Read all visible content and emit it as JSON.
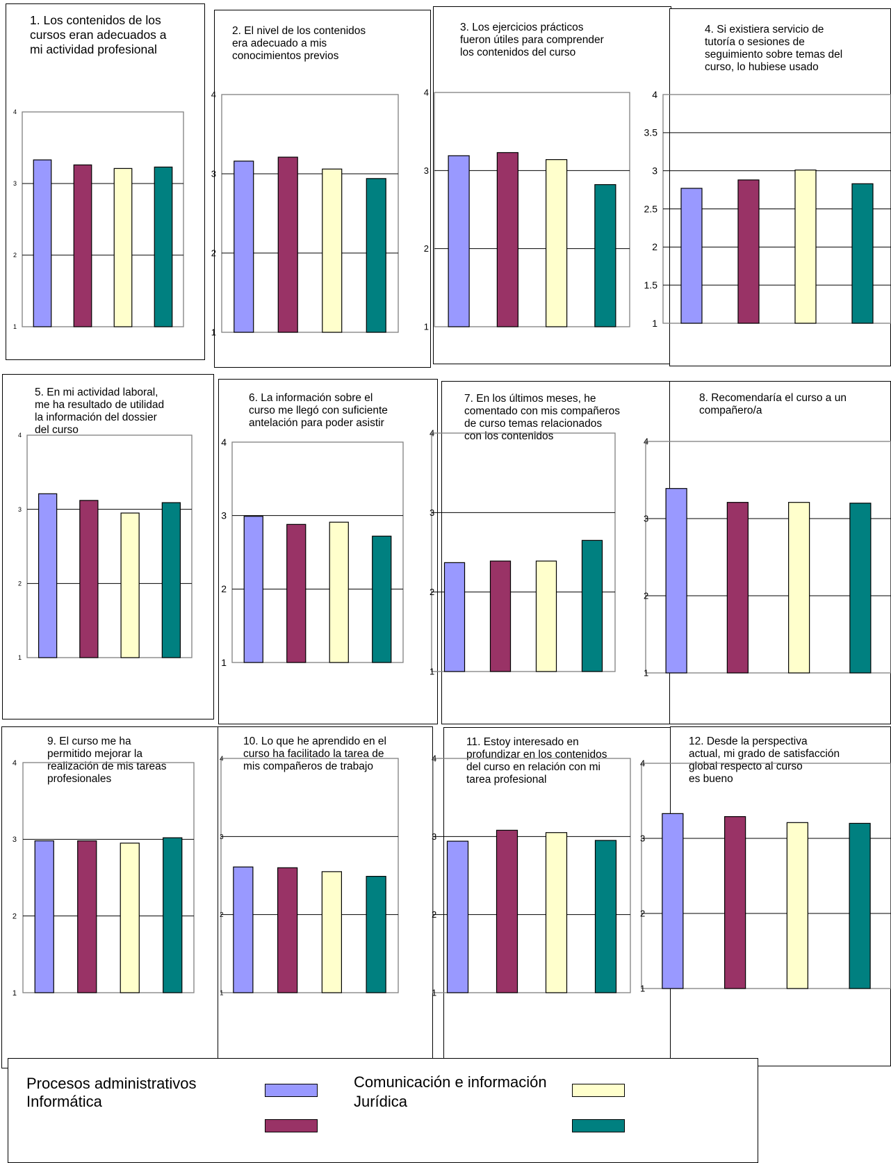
{
  "colors": {
    "procesos": "#9999ff",
    "informatica": "#993366",
    "comunicacion": "#ffffcc",
    "juridica": "#008080"
  },
  "legend": {
    "items": [
      {
        "label": "Procesos administrativos",
        "color": "#9999ff"
      },
      {
        "label": "Informática",
        "color": "#993366"
      },
      {
        "label": "Comunicación e información",
        "color": "#ffffcc"
      },
      {
        "label": "Jurídica",
        "color": "#008080"
      }
    ]
  },
  "chart_data": [
    {
      "type": "bar",
      "title": "1. Los contenidos de los\ncursos eran adecuados a\nmi actividad profesional",
      "ylim": [
        1,
        4
      ],
      "yticks": [
        "1",
        "2",
        "3",
        "4"
      ],
      "grid": true,
      "series": [
        {
          "name": "Procesos administrativos",
          "values": [
            3.33
          ]
        },
        {
          "name": "Informática",
          "values": [
            3.26
          ]
        },
        {
          "name": "Comunicación e información",
          "values": [
            3.21
          ]
        },
        {
          "name": "Jurídica",
          "values": [
            3.23
          ]
        }
      ]
    },
    {
      "type": "bar",
      "title": "2. El nivel de los  contenidos\nera adecuado a mis\nconocimientos previos",
      "ylim": [
        1,
        4
      ],
      "yticks": [
        "1",
        "2",
        "3",
        "4"
      ],
      "grid": true,
      "series": [
        {
          "name": "Procesos administrativos",
          "values": [
            3.16
          ]
        },
        {
          "name": "Informática",
          "values": [
            3.21
          ]
        },
        {
          "name": "Comunicación e información",
          "values": [
            3.06
          ]
        },
        {
          "name": "Jurídica",
          "values": [
            2.94
          ]
        }
      ]
    },
    {
      "type": "bar",
      "title": "3. Los ejercicios prácticos\nfueron útiles para comprender\nlos contenidos del curso",
      "ylim": [
        1,
        4
      ],
      "yticks": [
        "1",
        "2",
        "3",
        "4"
      ],
      "grid": true,
      "series": [
        {
          "name": "Procesos administrativos",
          "values": [
            3.19
          ]
        },
        {
          "name": "Informática",
          "values": [
            3.23
          ]
        },
        {
          "name": "Comunicación e información",
          "values": [
            3.14
          ]
        },
        {
          "name": "Jurídica",
          "values": [
            2.82
          ]
        }
      ]
    },
    {
      "type": "bar",
      "title": "4. Si existiera servicio de\ntutoría o sesiones de\nseguimiento sobre temas del\ncurso, lo hubiese usado",
      "ylim": [
        1,
        4
      ],
      "yticks": [
        "1",
        "1.5",
        "2",
        "2.5",
        "3",
        "3.5",
        "4"
      ],
      "grid": true,
      "series": [
        {
          "name": "Procesos administrativos",
          "values": [
            2.77
          ]
        },
        {
          "name": "Informática",
          "values": [
            2.88
          ]
        },
        {
          "name": "Comunicación e información",
          "values": [
            3.01
          ]
        },
        {
          "name": "Jurídica",
          "values": [
            2.83
          ]
        }
      ]
    },
    {
      "type": "bar",
      "title": "5. En mi actividad laboral,\nme ha resultado de utilidad\nla información del dossier\ndel curso",
      "ylim": [
        1,
        4
      ],
      "yticks": [
        "1",
        "2",
        "3",
        "4"
      ],
      "grid": true,
      "series": [
        {
          "name": "Procesos administrativos",
          "values": [
            3.21
          ]
        },
        {
          "name": "Informática",
          "values": [
            3.12
          ]
        },
        {
          "name": "Comunicación e información",
          "values": [
            2.95
          ]
        },
        {
          "name": "Jurídica",
          "values": [
            3.09
          ]
        }
      ]
    },
    {
      "type": "bar",
      "title": "6. La información sobre el\ncurso me llegó con suficiente\nantelación para poder asistir",
      "ylim": [
        1,
        4
      ],
      "yticks": [
        "1",
        "2",
        "3",
        "4"
      ],
      "grid": true,
      "series": [
        {
          "name": "Procesos administrativos",
          "values": [
            2.99
          ]
        },
        {
          "name": "Informática",
          "values": [
            2.88
          ]
        },
        {
          "name": "Comunicación e información",
          "values": [
            2.91
          ]
        },
        {
          "name": "Jurídica",
          "values": [
            2.72
          ]
        }
      ]
    },
    {
      "type": "bar",
      "title": "7. En los últimos meses, he\ncomentado con mis compañeros\nde curso temas relacionados\ncon los contenidos",
      "ylim": [
        1,
        4
      ],
      "yticks": [
        "1",
        "2",
        "3",
        "4"
      ],
      "grid": true,
      "series": [
        {
          "name": "Procesos administrativos",
          "values": [
            2.37
          ]
        },
        {
          "name": "Informática",
          "values": [
            2.39
          ]
        },
        {
          "name": "Comunicación e información",
          "values": [
            2.39
          ]
        },
        {
          "name": "Jurídica",
          "values": [
            2.65
          ]
        }
      ]
    },
    {
      "type": "bar",
      "title": "8. Recomendaría el curso a un\ncompañero/a",
      "ylim": [
        1,
        4
      ],
      "yticks": [
        "1",
        "2",
        "3",
        "4"
      ],
      "grid": true,
      "series": [
        {
          "name": "Procesos administrativos",
          "values": [
            3.39
          ]
        },
        {
          "name": "Informática",
          "values": [
            3.21
          ]
        },
        {
          "name": "Comunicación e información",
          "values": [
            3.21
          ]
        },
        {
          "name": "Jurídica",
          "values": [
            3.2
          ]
        }
      ]
    },
    {
      "type": "bar",
      "title": "9. El curso me ha\npermitido mejorar la\nrealización de mis tareas\nprofesionales",
      "ylim": [
        1,
        4
      ],
      "yticks": [
        "1",
        "2",
        "3",
        "4"
      ],
      "grid": true,
      "series": [
        {
          "name": "Procesos administrativos",
          "values": [
            2.98
          ]
        },
        {
          "name": "Informática",
          "values": [
            2.98
          ]
        },
        {
          "name": "Comunicación e información",
          "values": [
            2.95
          ]
        },
        {
          "name": "Jurídica",
          "values": [
            3.02
          ]
        }
      ]
    },
    {
      "type": "bar",
      "title": "10. Lo que he aprendido en el\ncurso ha facilitado la tarea de\nmis compañeros de trabajo",
      "ylim": [
        1,
        4
      ],
      "yticks": [
        "1",
        "2",
        "3",
        "4"
      ],
      "grid": true,
      "series": [
        {
          "name": "Procesos administrativos",
          "values": [
            2.61
          ]
        },
        {
          "name": "Informática",
          "values": [
            2.6
          ]
        },
        {
          "name": "Comunicación e información",
          "values": [
            2.55
          ]
        },
        {
          "name": "Jurídica",
          "values": [
            2.49
          ]
        }
      ]
    },
    {
      "type": "bar",
      "title": "11. Estoy interesado en\nprofundizar en los contenidos\ndel curso en relación con mi\ntarea profesional",
      "ylim": [
        1,
        4
      ],
      "yticks": [
        "1",
        "2",
        "3",
        "4"
      ],
      "grid": true,
      "series": [
        {
          "name": "Procesos administrativos",
          "values": [
            2.94
          ]
        },
        {
          "name": "Informática",
          "values": [
            3.08
          ]
        },
        {
          "name": "Comunicación e información",
          "values": [
            3.05
          ]
        },
        {
          "name": "Jurídica",
          "values": [
            2.95
          ]
        }
      ]
    },
    {
      "type": "bar",
      "title": "12. Desde la perspectiva\nactual, mi grado de satisfacción\nglobal respecto al curso\nes bueno",
      "ylim": [
        1,
        4
      ],
      "yticks": [
        "1",
        "2",
        "3",
        "4"
      ],
      "grid": true,
      "series": [
        {
          "name": "Procesos administrativos",
          "values": [
            3.33
          ]
        },
        {
          "name": "Informática",
          "values": [
            3.29
          ]
        },
        {
          "name": "Comunicación e información",
          "values": [
            3.21
          ]
        },
        {
          "name": "Jurídica",
          "values": [
            3.2
          ]
        }
      ]
    }
  ]
}
